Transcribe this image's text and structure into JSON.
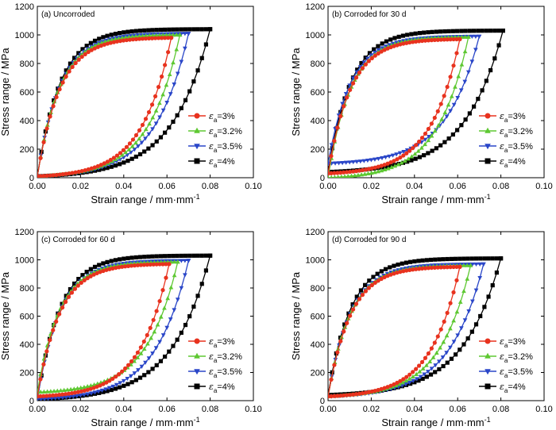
{
  "figure": {
    "xlabel": "Strain range / mm·mm",
    "xlabel_sup": "-1",
    "ylabel": "Stress range / MPa"
  },
  "legend": [
    {
      "label": "=3%",
      "symbol": "ε",
      "sub": "a",
      "color": "#e8321e",
      "marker": "circle"
    },
    {
      "label": "=3.2%",
      "symbol": "ε",
      "sub": "a",
      "color": "#5ec832",
      "marker": "triangle-up"
    },
    {
      "label": "=3.5%",
      "symbol": "ε",
      "sub": "a",
      "color": "#2a46c8",
      "marker": "triangle-down"
    },
    {
      "label": "=4%",
      "symbol": "ε",
      "sub": "a",
      "color": "#000000",
      "marker": "square"
    }
  ],
  "chart_data": [
    {
      "type": "line",
      "panel": "(a)",
      "title": "Uncorroded",
      "xlim": [
        0,
        0.1
      ],
      "ylim": [
        0,
        1200
      ],
      "xticks": [
        "0.00",
        "0.02",
        "0.04",
        "0.06",
        "0.08",
        "0.10"
      ],
      "yticks": [
        "0",
        "200",
        "400",
        "600",
        "800",
        "1000",
        "1200"
      ],
      "series": [
        {
          "name": "εa=3%",
          "strain_max": 0.062,
          "stress_max": 980,
          "stress_min": 10
        },
        {
          "name": "εa=3.2%",
          "strain_max": 0.066,
          "stress_max": 1000,
          "stress_min": 10
        },
        {
          "name": "εa=3.5%",
          "strain_max": 0.07,
          "stress_max": 1010,
          "stress_min": 10
        },
        {
          "name": "εa=4%",
          "strain_max": 0.08,
          "stress_max": 1040,
          "stress_min": 10
        }
      ]
    },
    {
      "type": "line",
      "panel": "(b)",
      "title": "Corroded for 30 d",
      "xlim": [
        0,
        0.1
      ],
      "ylim": [
        0,
        1200
      ],
      "xticks": [
        "0.00",
        "0.02",
        "0.04",
        "0.06",
        "0.08",
        "0.10"
      ],
      "yticks": [
        "0",
        "200",
        "400",
        "600",
        "800",
        "1000",
        "1200"
      ],
      "series": [
        {
          "name": "εa=3%",
          "strain_max": 0.061,
          "stress_max": 970,
          "stress_min": 30
        },
        {
          "name": "εa=3.2%",
          "strain_max": 0.065,
          "stress_max": 985,
          "stress_min": 0
        },
        {
          "name": "εa=3.5%",
          "strain_max": 0.07,
          "stress_max": 990,
          "stress_min": 100
        },
        {
          "name": "εa=4%",
          "strain_max": 0.081,
          "stress_max": 1030,
          "stress_min": 40
        }
      ]
    },
    {
      "type": "line",
      "panel": "(c)",
      "title": "Corroded for 60 d",
      "xlim": [
        0,
        0.1
      ],
      "ylim": [
        0,
        1200
      ],
      "xticks": [
        "0.00",
        "0.02",
        "0.04",
        "0.06",
        "0.08",
        "0.10"
      ],
      "yticks": [
        "0",
        "200",
        "400",
        "600",
        "800",
        "1000",
        "1200"
      ],
      "series": [
        {
          "name": "εa=3%",
          "strain_max": 0.061,
          "stress_max": 970,
          "stress_min": 30
        },
        {
          "name": "εa=3.2%",
          "strain_max": 0.065,
          "stress_max": 985,
          "stress_min": 60
        },
        {
          "name": "εa=3.5%",
          "strain_max": 0.07,
          "stress_max": 995,
          "stress_min": 10
        },
        {
          "name": "εa=4%",
          "strain_max": 0.08,
          "stress_max": 1030,
          "stress_min": 10
        }
      ]
    },
    {
      "type": "line",
      "panel": "(d)",
      "title": "Corroded for 90 d",
      "xlim": [
        0,
        0.1
      ],
      "ylim": [
        0,
        1200
      ],
      "xticks": [
        "0.00",
        "0.02",
        "0.04",
        "0.06",
        "0.08",
        "0.10"
      ],
      "yticks": [
        "0",
        "200",
        "400",
        "600",
        "800",
        "1000",
        "1200"
      ],
      "series": [
        {
          "name": "εa=3%",
          "strain_max": 0.061,
          "stress_max": 950,
          "stress_min": 30
        },
        {
          "name": "εa=3.2%",
          "strain_max": 0.066,
          "stress_max": 960,
          "stress_min": 30
        },
        {
          "name": "εa=3.5%",
          "strain_max": 0.072,
          "stress_max": 970,
          "stress_min": 30
        },
        {
          "name": "εa=4%",
          "strain_max": 0.08,
          "stress_max": 1010,
          "stress_min": 40
        }
      ]
    }
  ]
}
